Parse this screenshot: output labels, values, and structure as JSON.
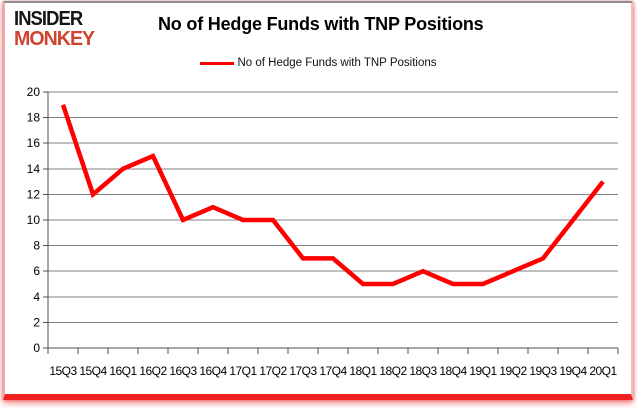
{
  "logo": {
    "line1": "INSIDER",
    "line2": "MONKEY"
  },
  "header": {
    "title": "No of Hedge Funds with TNP Positions"
  },
  "legend": {
    "label": "No of Hedge Funds with TNP Positions"
  },
  "chart_data": {
    "type": "line",
    "title": "No of Hedge Funds with TNP Positions",
    "categories": [
      "15Q3",
      "15Q4",
      "16Q1",
      "16Q2",
      "16Q3",
      "16Q4",
      "17Q1",
      "17Q2",
      "17Q3",
      "17Q4",
      "18Q1",
      "18Q2",
      "18Q3",
      "18Q4",
      "19Q1",
      "19Q2",
      "19Q3",
      "19Q4",
      "20Q1"
    ],
    "series": [
      {
        "name": "No of Hedge Funds with TNP Positions",
        "values": [
          19,
          12,
          14,
          15,
          10,
          11,
          10,
          10,
          7,
          7,
          5,
          5,
          6,
          5,
          5,
          6,
          7,
          10,
          13
        ],
        "color": "#FF0000"
      }
    ],
    "xlabel": "",
    "ylabel": "",
    "ylim": [
      0,
      20
    ],
    "ytick_step": 2,
    "grid": true,
    "legend_position": "top-center"
  },
  "colors": {
    "line": "#FF0000",
    "gridline": "#808080",
    "axis": "#4f4f4f",
    "logo_red": "#d0442f",
    "frame_bottom": "#ee2020",
    "frame_side": "#efa9a9",
    "frame_top": "#8e8e8e"
  }
}
